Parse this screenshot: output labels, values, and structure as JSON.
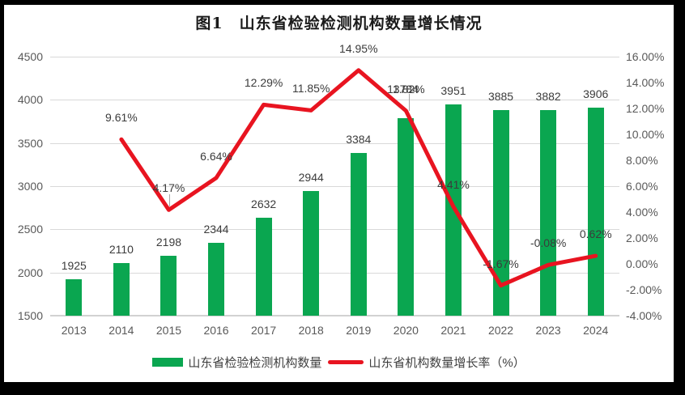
{
  "title": "图1　山东省检验检测机构数量增长情况",
  "colors": {
    "bar_green": "#0aa650",
    "line_red": "#e81420",
    "grid": "#d9d9d9",
    "axis_text": "#595959",
    "data_label_text": "#3b3b3b",
    "frame_black": "#000000"
  },
  "chart_data": {
    "type": "bar",
    "combo": "bar+line",
    "title": "图1　山东省检验检测机构数量增长情况",
    "categories": [
      "2013",
      "2014",
      "2015",
      "2016",
      "2017",
      "2018",
      "2019",
      "2020",
      "2021",
      "2022",
      "2023",
      "2024"
    ],
    "series": [
      {
        "name": "山东省检验检测机构数量",
        "type": "bar",
        "axis": "left",
        "color": "#0aa650",
        "values": [
          1925,
          2110,
          2198,
          2344,
          2632,
          2944,
          3384,
          3784,
          3951,
          3885,
          3882,
          3906
        ],
        "labels": [
          "1925",
          "2110",
          "2198",
          "2344",
          "2632",
          "2944",
          "3384",
          "3784",
          "3951",
          "3885",
          "3882",
          "3906"
        ]
      },
      {
        "name": "山东省机构数量增长率（%）",
        "type": "line",
        "axis": "right",
        "color": "#e81420",
        "values": [
          null,
          9.61,
          4.17,
          6.64,
          12.29,
          11.85,
          14.95,
          11.82,
          4.41,
          -1.67,
          -0.08,
          0.62
        ],
        "labels": [
          null,
          "9.61%",
          "4.17%",
          "6.64%",
          "12.29%",
          "11.85%",
          "14.95%",
          "11.82%",
          "4.41%",
          "-1.67%",
          "-0.08%",
          "0.62%"
        ]
      }
    ],
    "left_axis": {
      "min": 1500,
      "max": 4500,
      "step": 500,
      "ticks": [
        "4500",
        "4000",
        "3500",
        "3000",
        "2500",
        "2000",
        "1500"
      ]
    },
    "right_axis": {
      "min": -4,
      "max": 16,
      "step": 2,
      "ticks": [
        "16.00%",
        "14.00%",
        "12.00%",
        "10.00%",
        "8.00%",
        "6.00%",
        "4.00%",
        "2.00%",
        "0.00%",
        "-2.00%",
        "-4.00%"
      ]
    },
    "grid": true,
    "legend_position": "bottom"
  }
}
